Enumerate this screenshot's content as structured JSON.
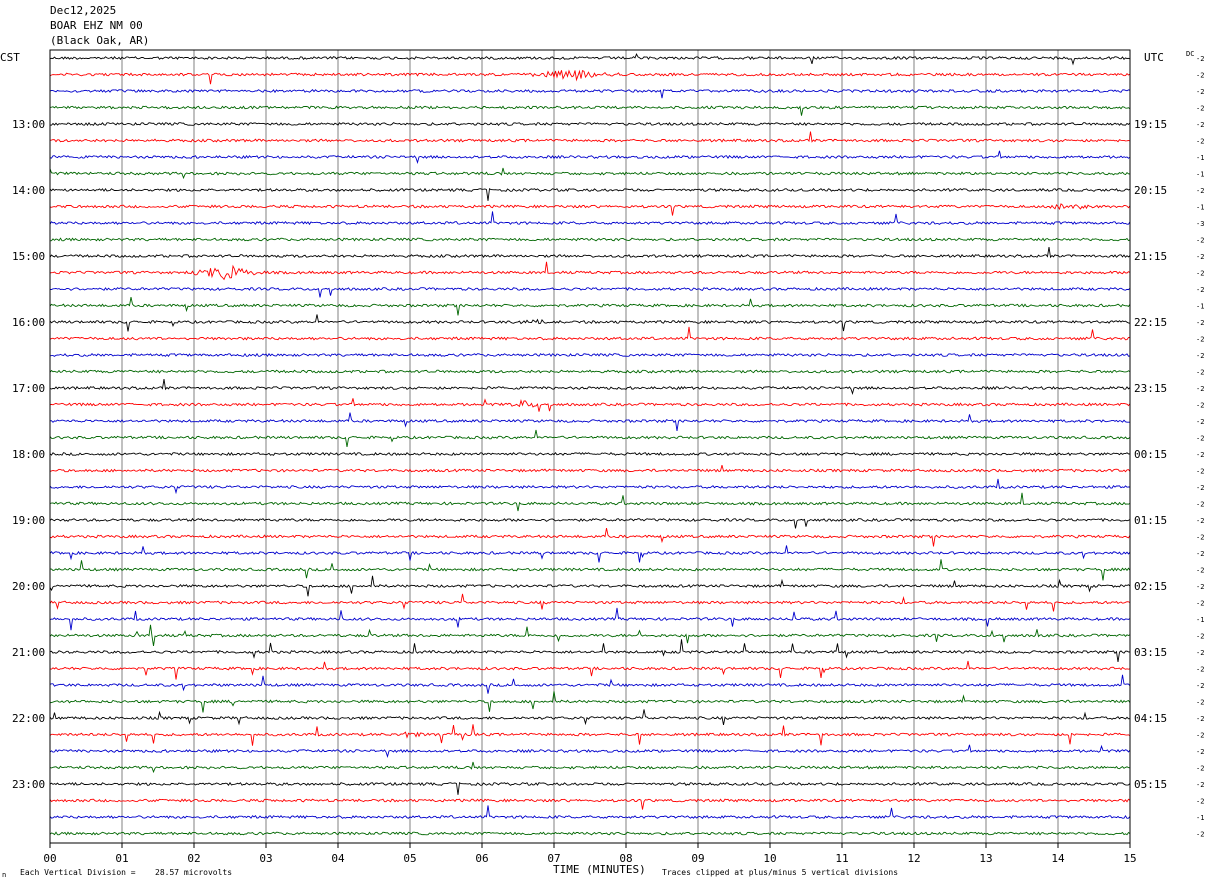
{
  "header": {
    "date": "Dec12,2025",
    "station": "BOAR EHZ NM 00",
    "location": "(Black Oak, AR)"
  },
  "left_tz": "CST",
  "right_tz": "UTC",
  "dc_label": "DC",
  "footer": {
    "scale_prefix": "Each Vertical Division =",
    "scale_value": "28.57 microvolts",
    "xlabel": "TIME (MINUTES)",
    "clip_note": "Traces clipped at plus/minus 5 vertical divisions",
    "logo_mark": "n"
  },
  "colors": {
    "series": [
      "#000000",
      "#ff0000",
      "#0000cc",
      "#006600"
    ],
    "grid": "#808080"
  },
  "chart_data": {
    "type": "line",
    "x_ticks": [
      "00",
      "01",
      "02",
      "03",
      "04",
      "05",
      "06",
      "07",
      "08",
      "09",
      "10",
      "11",
      "12",
      "13",
      "14",
      "15"
    ],
    "xlim": [
      0,
      15
    ],
    "left_hour_labels": [
      "13:00",
      "14:00",
      "15:00",
      "16:00",
      "17:00",
      "18:00",
      "19:00",
      "20:00",
      "21:00",
      "22:00",
      "23:00"
    ],
    "right_hour_labels": [
      "19:15",
      "20:15",
      "21:15",
      "22:15",
      "23:15",
      "00:15",
      "01:15",
      "02:15",
      "03:15",
      "04:15",
      "05:15"
    ],
    "traces_per_hour": 4,
    "trace_count": 48,
    "dc_offsets": [
      "-2",
      "-2",
      "-2",
      "-2",
      "-2",
      "-2",
      "-1",
      "-1",
      "-2",
      "-1",
      "-3",
      "-2",
      "-2",
      "-2",
      "-2",
      "-1",
      "-2",
      "-2",
      "-2",
      "-2",
      "-2",
      "-2",
      "-2",
      "-2",
      "-2",
      "-2",
      "-2",
      "-2",
      "-2",
      "-2",
      "-2",
      "-2",
      "-2",
      "-2",
      "-1",
      "-2",
      "-2",
      "-2",
      "-2",
      "-2",
      "-2",
      "-2",
      "-2",
      "-2",
      "-2",
      "-2",
      "-1",
      "-2"
    ],
    "events": [
      {
        "trace": 1,
        "start_min": 6.7,
        "end_min": 7.9,
        "amp": 5
      },
      {
        "trace": 13,
        "start_min": 1.9,
        "end_min": 3.0,
        "amp": 7
      },
      {
        "trace": 16,
        "start_min": 6.4,
        "end_min": 7.0,
        "amp": 3
      },
      {
        "trace": 21,
        "start_min": 6.4,
        "end_min": 6.8,
        "amp": 4
      },
      {
        "trace": 9,
        "start_min": 13.8,
        "end_min": 14.5,
        "amp": 4
      },
      {
        "trace": 41,
        "start_min": 4.8,
        "end_min": 5.2,
        "amp": 3
      }
    ]
  }
}
